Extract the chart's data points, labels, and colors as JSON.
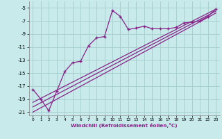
{
  "xlabel": "Windchill (Refroidissement éolien,°C)",
  "xlim": [
    -0.5,
    23.5
  ],
  "ylim": [
    -21.5,
    -4.0
  ],
  "yticks": [
    -21,
    -19,
    -17,
    -15,
    -13,
    -11,
    -9,
    -7,
    -5
  ],
  "xticks": [
    0,
    1,
    2,
    3,
    4,
    5,
    6,
    7,
    8,
    9,
    10,
    11,
    12,
    13,
    14,
    15,
    16,
    17,
    18,
    19,
    20,
    21,
    22,
    23
  ],
  "bg_color": "#c8eaea",
  "grid_color": "#a8d0d0",
  "line_color": "#882288",
  "line1_x": [
    0,
    1,
    2,
    3,
    4,
    5,
    6,
    7,
    8,
    9,
    10,
    11,
    12,
    13,
    14,
    15,
    16,
    17,
    18,
    19,
    20,
    21,
    22,
    23
  ],
  "line1_y": [
    -17.5,
    -19.0,
    -20.8,
    -17.8,
    -14.8,
    -13.4,
    -13.2,
    -10.8,
    -9.6,
    -9.4,
    -5.4,
    -6.3,
    -8.3,
    -8.1,
    -7.8,
    -8.2,
    -8.2,
    -8.2,
    -8.0,
    -7.3,
    -7.2,
    -7.0,
    -6.3,
    -5.2
  ],
  "line2_x": [
    0,
    23
  ],
  "line2_y": [
    -19.5,
    -5.2
  ],
  "line3_x": [
    0,
    23
  ],
  "line3_y": [
    -20.2,
    -5.5
  ],
  "line4_x": [
    0,
    23
  ],
  "line4_y": [
    -21.0,
    -5.8
  ]
}
